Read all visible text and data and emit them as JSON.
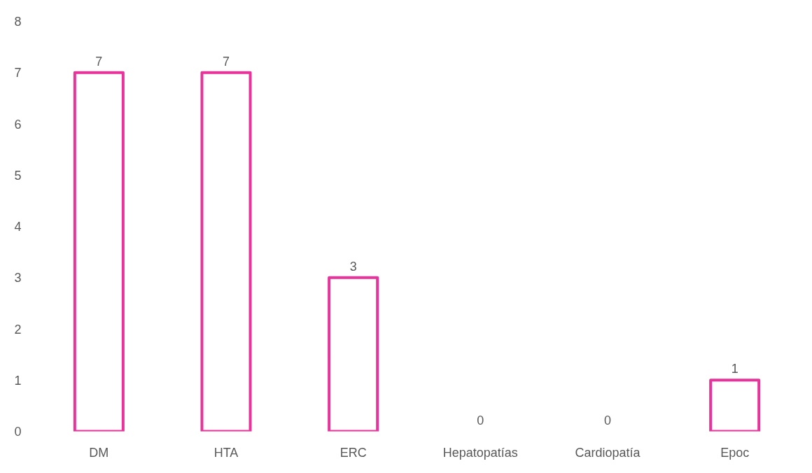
{
  "chart_data": {
    "type": "bar",
    "categories": [
      "DM",
      "HTA",
      "ERC",
      "Hepatopatías",
      "Cardiopatía",
      "Epoc"
    ],
    "values": [
      7,
      7,
      3,
      0,
      0,
      1
    ],
    "color": "#e8339a",
    "ylim": [
      0,
      8
    ],
    "yticks": [
      0,
      1,
      2,
      3,
      4,
      5,
      6,
      7,
      8
    ],
    "grid": false,
    "data_labels": true
  }
}
